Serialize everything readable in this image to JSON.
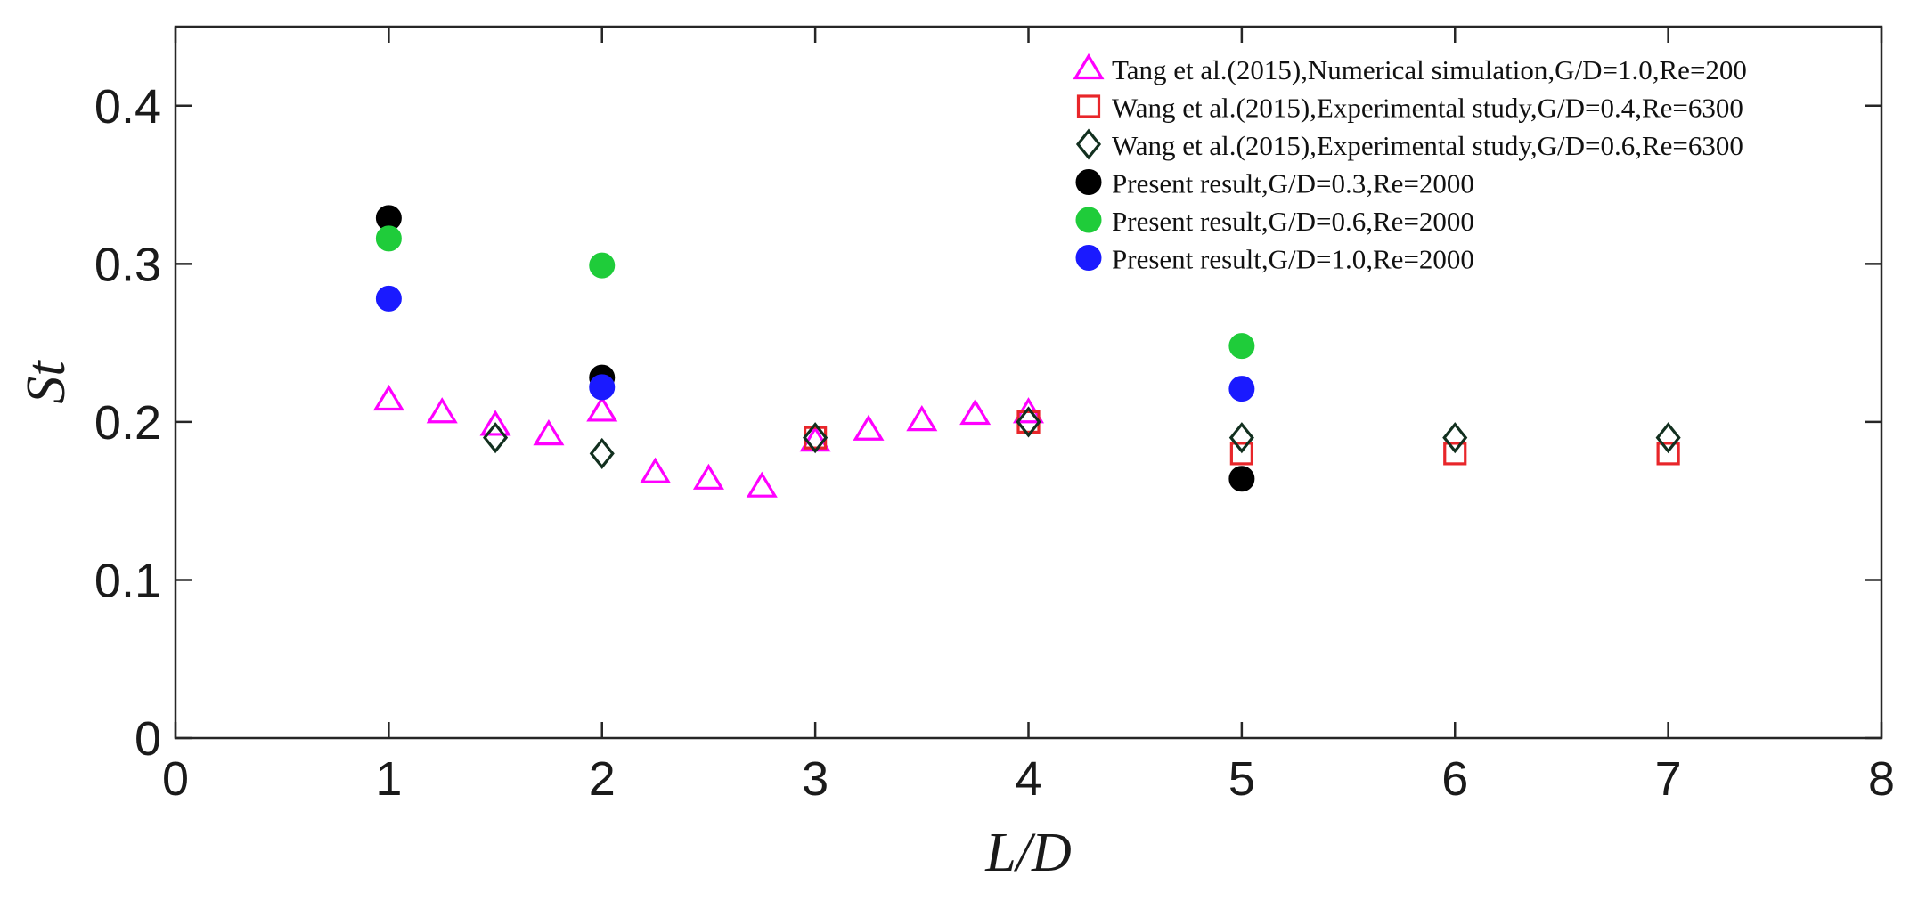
{
  "chart_data": {
    "type": "scatter",
    "title": "",
    "xlabel": "L/D",
    "ylabel": "St",
    "xlim": [
      0,
      8
    ],
    "ylim": [
      0,
      0.45
    ],
    "xticks": [
      0,
      1,
      2,
      3,
      4,
      5,
      6,
      7,
      8
    ],
    "yticks": [
      0,
      0.1,
      0.2,
      0.3,
      0.4
    ],
    "xtick_labels": [
      "0",
      "1",
      "2",
      "3",
      "4",
      "5",
      "6",
      "7",
      "8"
    ],
    "ytick_labels": [
      "0",
      "0.1",
      "0.2",
      "0.3",
      "0.4"
    ],
    "grid": false,
    "legend_position": "top-right",
    "series": [
      {
        "name": "Tang et al.(2015),Numerical simulation,G/D=1.0,Re=200",
        "marker": "triangle",
        "color": "#ff00ff",
        "filled": false,
        "points": [
          [
            1,
            0.214
          ],
          [
            1.25,
            0.206
          ],
          [
            1.5,
            0.198
          ],
          [
            1.75,
            0.192
          ],
          [
            2,
            0.207
          ],
          [
            2.25,
            0.168
          ],
          [
            2.5,
            0.164
          ],
          [
            2.75,
            0.159
          ],
          [
            3,
            0.188
          ],
          [
            3.25,
            0.195
          ],
          [
            3.5,
            0.201
          ],
          [
            3.75,
            0.205
          ],
          [
            4,
            0.206
          ]
        ]
      },
      {
        "name": "Wang et al.(2015),Experimental study,G/D=0.4,Re=6300",
        "marker": "square",
        "color": "#e8262a",
        "filled": false,
        "points": [
          [
            3,
            0.19
          ],
          [
            4,
            0.2
          ],
          [
            5,
            0.18
          ],
          [
            6,
            0.18
          ],
          [
            7,
            0.18
          ]
        ]
      },
      {
        "name": "Wang et al.(2015),Experimental study,G/D=0.6,Re=6300",
        "marker": "diamond",
        "color": "#12301f",
        "filled": false,
        "points": [
          [
            1.5,
            0.19
          ],
          [
            2,
            0.18
          ],
          [
            3,
            0.19
          ],
          [
            4,
            0.2
          ],
          [
            5,
            0.19
          ],
          [
            6,
            0.19
          ],
          [
            7,
            0.19
          ]
        ]
      },
      {
        "name": "Present result,G/D=0.3,Re=2000",
        "marker": "circle",
        "color": "#000000",
        "filled": true,
        "points": [
          [
            1,
            0.329
          ],
          [
            2,
            0.228
          ],
          [
            5,
            0.164
          ]
        ]
      },
      {
        "name": "Present result,G/D=0.6,Re=2000",
        "marker": "circle",
        "color": "#1fcc3a",
        "filled": true,
        "points": [
          [
            1,
            0.316
          ],
          [
            2,
            0.299
          ],
          [
            5,
            0.248
          ]
        ]
      },
      {
        "name": "Present result,G/D=1.0,Re=2000",
        "marker": "circle",
        "color": "#1a1aff",
        "filled": true,
        "points": [
          [
            1,
            0.278
          ],
          [
            2,
            0.222
          ],
          [
            5,
            0.221
          ]
        ]
      }
    ]
  }
}
